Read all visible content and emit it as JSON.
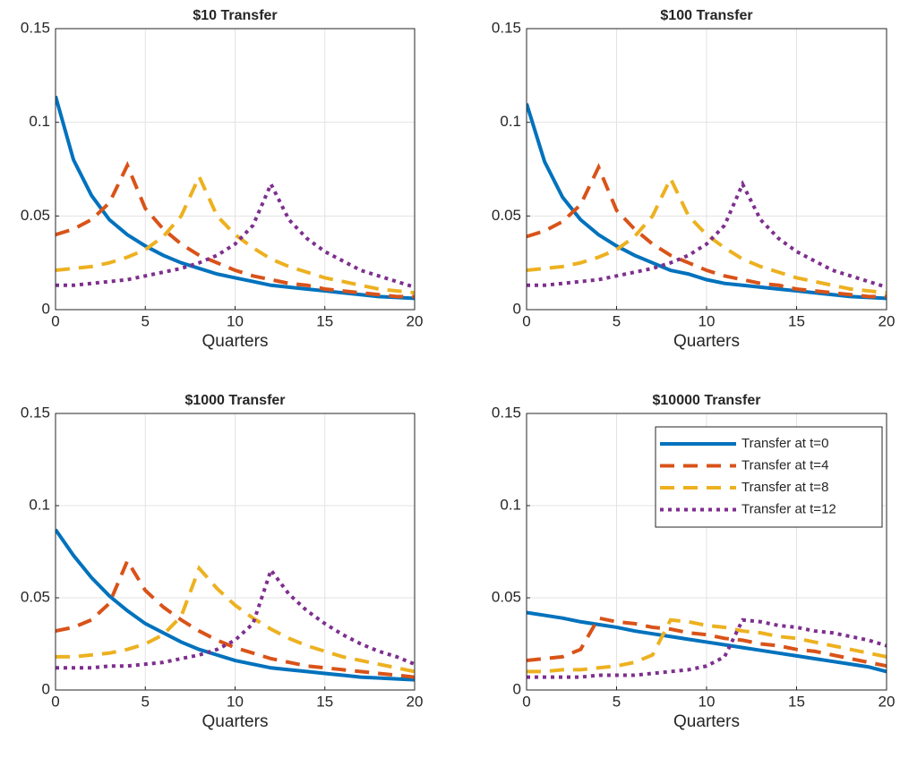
{
  "chart_data": [
    {
      "type": "line",
      "title": "$10 Transfer",
      "xlabel": "Quarters",
      "x": [
        0,
        1,
        2,
        3,
        4,
        5,
        6,
        7,
        8,
        9,
        10,
        11,
        12,
        13,
        14,
        15,
        16,
        17,
        18,
        19,
        20
      ],
      "xlim": [
        0,
        20
      ],
      "xticks": [
        0,
        5,
        10,
        15,
        20
      ],
      "ylim": [
        0,
        0.15
      ],
      "yticks": [
        0,
        0.05,
        0.1,
        0.15
      ],
      "grid": true,
      "series": [
        {
          "color": "#0072BD",
          "linestyle": "solid",
          "values": [
            0.114,
            0.08,
            0.061,
            0.048,
            0.04,
            0.034,
            0.029,
            0.025,
            0.022,
            0.019,
            0.017,
            0.015,
            0.013,
            0.012,
            0.011,
            0.01,
            0.009,
            0.008,
            0.007,
            0.0065,
            0.006
          ]
        },
        {
          "color": "#D95319",
          "linestyle": "dashed",
          "values": [
            0.04,
            0.043,
            0.048,
            0.057,
            0.077,
            0.054,
            0.043,
            0.035,
            0.029,
            0.025,
            0.021,
            0.018,
            0.016,
            0.014,
            0.013,
            0.011,
            0.01,
            0.009,
            0.008,
            0.007,
            0.007
          ]
        },
        {
          "color": "#EDB120",
          "linestyle": "dashed",
          "values": [
            0.021,
            0.022,
            0.023,
            0.025,
            0.028,
            0.032,
            0.039,
            0.05,
            0.071,
            0.05,
            0.04,
            0.033,
            0.027,
            0.023,
            0.02,
            0.017,
            0.015,
            0.013,
            0.011,
            0.01,
            0.009
          ]
        },
        {
          "color": "#7E2F8E",
          "linestyle": "dotted",
          "values": [
            0.013,
            0.013,
            0.014,
            0.015,
            0.016,
            0.018,
            0.02,
            0.022,
            0.025,
            0.029,
            0.035,
            0.045,
            0.067,
            0.048,
            0.038,
            0.031,
            0.026,
            0.021,
            0.018,
            0.015,
            0.012
          ]
        }
      ]
    },
    {
      "type": "line",
      "title": "$100 Transfer",
      "xlabel": "Quarters",
      "x": [
        0,
        1,
        2,
        3,
        4,
        5,
        6,
        7,
        8,
        9,
        10,
        11,
        12,
        13,
        14,
        15,
        16,
        17,
        18,
        19,
        20
      ],
      "xlim": [
        0,
        20
      ],
      "xticks": [
        0,
        5,
        10,
        15,
        20
      ],
      "ylim": [
        0,
        0.15
      ],
      "yticks": [
        0,
        0.05,
        0.1,
        0.15
      ],
      "grid": true,
      "series": [
        {
          "color": "#0072BD",
          "linestyle": "solid",
          "values": [
            0.11,
            0.079,
            0.06,
            0.048,
            0.04,
            0.034,
            0.029,
            0.025,
            0.021,
            0.019,
            0.016,
            0.014,
            0.013,
            0.012,
            0.011,
            0.01,
            0.009,
            0.008,
            0.007,
            0.0065,
            0.006
          ]
        },
        {
          "color": "#D95319",
          "linestyle": "dashed",
          "values": [
            0.039,
            0.042,
            0.047,
            0.056,
            0.076,
            0.053,
            0.043,
            0.035,
            0.029,
            0.025,
            0.021,
            0.018,
            0.016,
            0.014,
            0.013,
            0.011,
            0.01,
            0.009,
            0.008,
            0.007,
            0.007
          ]
        },
        {
          "color": "#EDB120",
          "linestyle": "dashed",
          "values": [
            0.021,
            0.022,
            0.023,
            0.025,
            0.028,
            0.032,
            0.039,
            0.05,
            0.07,
            0.05,
            0.04,
            0.033,
            0.027,
            0.023,
            0.02,
            0.017,
            0.015,
            0.013,
            0.011,
            0.01,
            0.009
          ]
        },
        {
          "color": "#7E2F8E",
          "linestyle": "dotted",
          "values": [
            0.013,
            0.013,
            0.014,
            0.015,
            0.016,
            0.018,
            0.02,
            0.022,
            0.025,
            0.029,
            0.035,
            0.045,
            0.067,
            0.048,
            0.038,
            0.031,
            0.026,
            0.021,
            0.018,
            0.015,
            0.012
          ]
        }
      ]
    },
    {
      "type": "line",
      "title": "$1000 Transfer",
      "xlabel": "Quarters",
      "x": [
        0,
        1,
        2,
        3,
        4,
        5,
        6,
        7,
        8,
        9,
        10,
        11,
        12,
        13,
        14,
        15,
        16,
        17,
        18,
        19,
        20
      ],
      "xlim": [
        0,
        20
      ],
      "xticks": [
        0,
        5,
        10,
        15,
        20
      ],
      "ylim": [
        0,
        0.15
      ],
      "yticks": [
        0,
        0.05,
        0.1,
        0.15
      ],
      "grid": true,
      "series": [
        {
          "color": "#0072BD",
          "linestyle": "solid",
          "values": [
            0.087,
            0.073,
            0.061,
            0.051,
            0.043,
            0.036,
            0.031,
            0.026,
            0.022,
            0.019,
            0.016,
            0.014,
            0.012,
            0.011,
            0.01,
            0.009,
            0.008,
            0.007,
            0.0065,
            0.006,
            0.0055
          ]
        },
        {
          "color": "#D95319",
          "linestyle": "dashed",
          "values": [
            0.032,
            0.034,
            0.038,
            0.047,
            0.07,
            0.054,
            0.045,
            0.038,
            0.032,
            0.027,
            0.023,
            0.02,
            0.017,
            0.015,
            0.013,
            0.012,
            0.011,
            0.01,
            0.009,
            0.008,
            0.007
          ]
        },
        {
          "color": "#EDB120",
          "linestyle": "dashed",
          "values": [
            0.018,
            0.018,
            0.019,
            0.02,
            0.022,
            0.025,
            0.03,
            0.04,
            0.066,
            0.055,
            0.046,
            0.039,
            0.033,
            0.028,
            0.024,
            0.021,
            0.018,
            0.016,
            0.014,
            0.012,
            0.01
          ]
        },
        {
          "color": "#7E2F8E",
          "linestyle": "dotted",
          "values": [
            0.012,
            0.012,
            0.012,
            0.013,
            0.013,
            0.014,
            0.015,
            0.017,
            0.019,
            0.022,
            0.027,
            0.036,
            0.065,
            0.052,
            0.043,
            0.036,
            0.03,
            0.025,
            0.021,
            0.018,
            0.014
          ]
        }
      ]
    },
    {
      "type": "line",
      "title": "$10000 Transfer",
      "xlabel": "Quarters",
      "x": [
        0,
        1,
        2,
        3,
        4,
        5,
        6,
        7,
        8,
        9,
        10,
        11,
        12,
        13,
        14,
        15,
        16,
        17,
        18,
        19,
        20
      ],
      "xlim": [
        0,
        20
      ],
      "xticks": [
        0,
        5,
        10,
        15,
        20
      ],
      "ylim": [
        0,
        0.15
      ],
      "yticks": [
        0,
        0.05,
        0.1,
        0.15
      ],
      "grid": true,
      "legend": "upper right",
      "series": [
        {
          "name": "Transfer at t=0",
          "color": "#0072BD",
          "linestyle": "solid",
          "values": [
            0.042,
            0.0405,
            0.039,
            0.037,
            0.0355,
            0.034,
            0.032,
            0.0305,
            0.029,
            0.0275,
            0.026,
            0.0245,
            0.023,
            0.0215,
            0.02,
            0.0185,
            0.017,
            0.0155,
            0.014,
            0.0125,
            0.01
          ]
        },
        {
          "name": "Transfer at t=4",
          "color": "#D95319",
          "linestyle": "dashed",
          "values": [
            0.016,
            0.017,
            0.018,
            0.022,
            0.039,
            0.037,
            0.036,
            0.034,
            0.033,
            0.031,
            0.03,
            0.028,
            0.027,
            0.025,
            0.024,
            0.022,
            0.021,
            0.019,
            0.017,
            0.015,
            0.013
          ]
        },
        {
          "name": "Transfer at t=8",
          "color": "#EDB120",
          "linestyle": "dashed",
          "values": [
            0.01,
            0.01,
            0.011,
            0.011,
            0.012,
            0.013,
            0.015,
            0.019,
            0.038,
            0.037,
            0.035,
            0.034,
            0.032,
            0.031,
            0.029,
            0.028,
            0.026,
            0.024,
            0.022,
            0.02,
            0.018
          ]
        },
        {
          "name": "Transfer at t=12",
          "color": "#7E2F8E",
          "linestyle": "dotted",
          "values": [
            0.007,
            0.007,
            0.007,
            0.007,
            0.008,
            0.008,
            0.008,
            0.009,
            0.01,
            0.011,
            0.013,
            0.018,
            0.038,
            0.037,
            0.035,
            0.034,
            0.032,
            0.031,
            0.029,
            0.027,
            0.024
          ]
        }
      ]
    }
  ]
}
